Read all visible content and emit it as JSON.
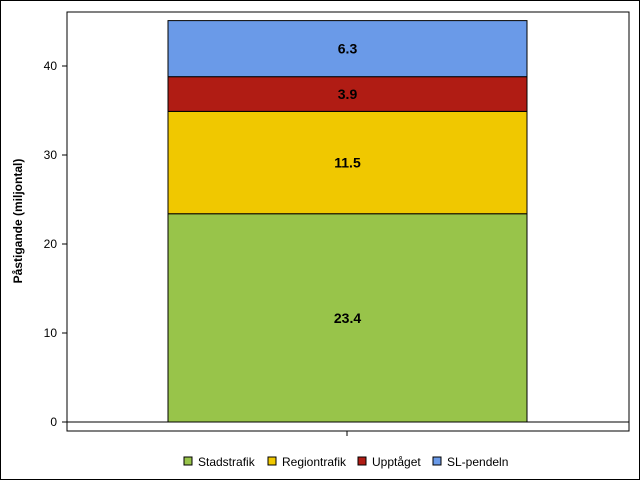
{
  "chart_data": {
    "type": "bar",
    "stacked": true,
    "categories": [
      ""
    ],
    "series": [
      {
        "name": "Stadstrafik",
        "values": [
          23.4
        ],
        "color": "#98c44a"
      },
      {
        "name": "Regiontrafik",
        "values": [
          11.5
        ],
        "color": "#f0c800"
      },
      {
        "name": "Upptåget",
        "values": [
          3.9
        ],
        "color": "#b01c14"
      },
      {
        "name": "SL-pendeln",
        "values": [
          6.3
        ],
        "color": "#6a9ae8"
      }
    ],
    "data_labels": [
      "23.4",
      "11.5",
      "3.9",
      "6.3"
    ],
    "title": "",
    "xlabel": "",
    "ylabel": "Påstigande (miljontal)",
    "ylim": [
      0,
      45
    ],
    "yticks": [
      0,
      10,
      20,
      30,
      40
    ],
    "ytick_labels": [
      "0",
      "10",
      "20",
      "30",
      "40"
    ],
    "grid": false,
    "legend_position": "bottom"
  }
}
